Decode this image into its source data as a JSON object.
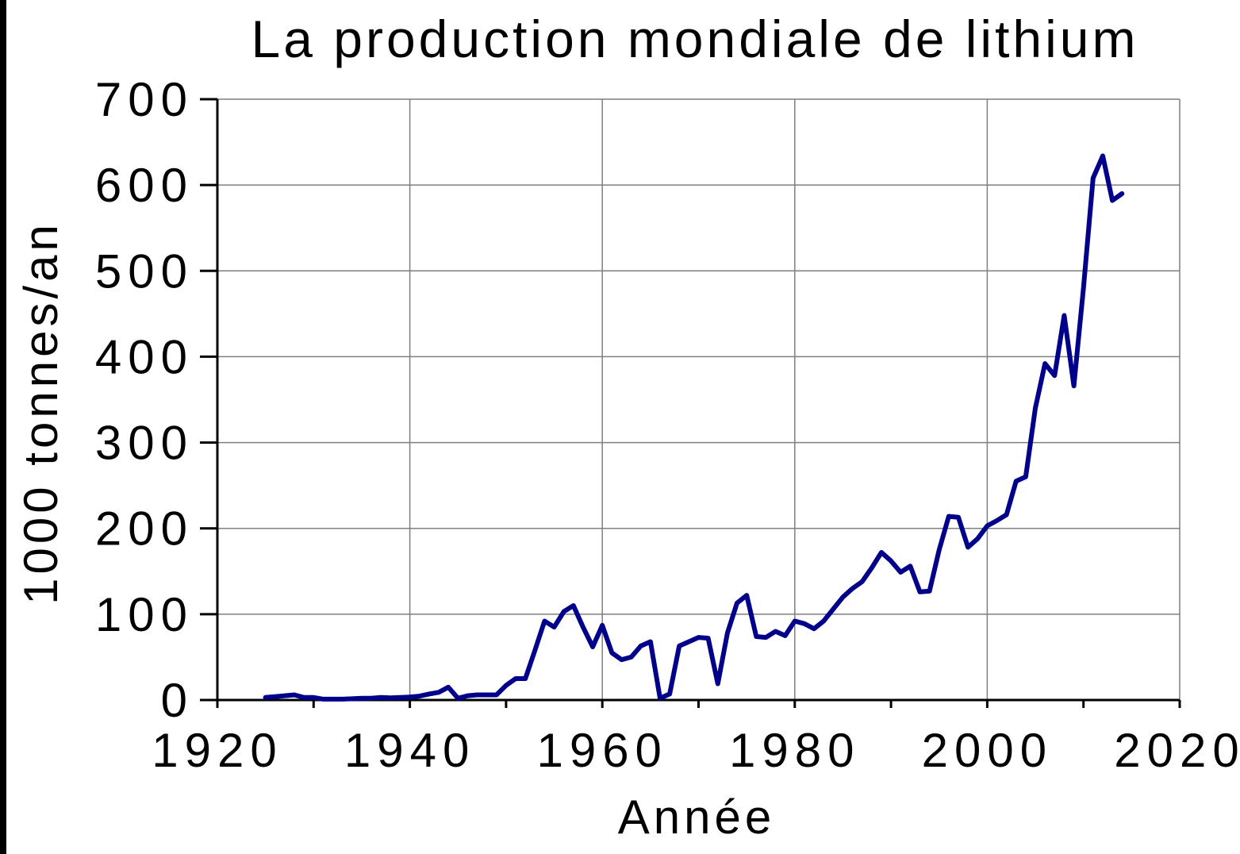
{
  "chart_data": {
    "type": "line",
    "title": "La production mondiale de lithium",
    "xlabel": "Année",
    "ylabel": "1000 tonnes/an",
    "xlim": [
      1920,
      2020
    ],
    "ylim": [
      0,
      700
    ],
    "xticks": [
      "1920",
      "1940",
      "1960",
      "1980",
      "2000",
      "2020"
    ],
    "yticks": [
      "0",
      "100",
      "200",
      "300",
      "400",
      "500",
      "600",
      "700"
    ],
    "grid": true,
    "series_color": "#00008b",
    "series": [
      {
        "x": [
          1925,
          1926,
          1927,
          1928,
          1929,
          1930,
          1931,
          1932,
          1933,
          1934,
          1935,
          1936,
          1937,
          1938,
          1939,
          1940,
          1941,
          1942,
          1943,
          1944,
          1945,
          1946,
          1947,
          1948,
          1949,
          1950,
          1951,
          1952,
          1953,
          1954,
          1955,
          1956,
          1957,
          1958,
          1959,
          1960,
          1961,
          1962,
          1963,
          1964,
          1965,
          1966,
          1967,
          1968,
          1969,
          1970,
          1971,
          1972,
          1973,
          1974,
          1975,
          1976,
          1977,
          1978,
          1979,
          1980,
          1981,
          1982,
          1983,
          1984,
          1985,
          1986,
          1987,
          1988,
          1989,
          1990,
          1991,
          1992,
          1993,
          1994,
          1995,
          1996,
          1997,
          1998,
          1999,
          2000,
          2001,
          2002,
          2003,
          2004,
          2005,
          2006,
          2007,
          2008,
          2009,
          2010,
          2011,
          2012,
          2013,
          2014
        ],
        "values": [
          3,
          4,
          5,
          6,
          3,
          3,
          1,
          1,
          1,
          1.5,
          2,
          2,
          3,
          2.5,
          3,
          3.5,
          4.5,
          7,
          9,
          15,
          2,
          5,
          6,
          6,
          6,
          17,
          25,
          25,
          58,
          92,
          85,
          103,
          110,
          85,
          62,
          87,
          55,
          47,
          50,
          63,
          68,
          2,
          7,
          63,
          68,
          73,
          72,
          19,
          78,
          113,
          122,
          74,
          73,
          80,
          75,
          92,
          89,
          83,
          92,
          106,
          120,
          130,
          138,
          154,
          172,
          162,
          149,
          156,
          126,
          127,
          175,
          214,
          213,
          178,
          188,
          203,
          209,
          216,
          255,
          260,
          340,
          392,
          378,
          448,
          366,
          480,
          608,
          634,
          582,
          590
        ]
      }
    ]
  }
}
